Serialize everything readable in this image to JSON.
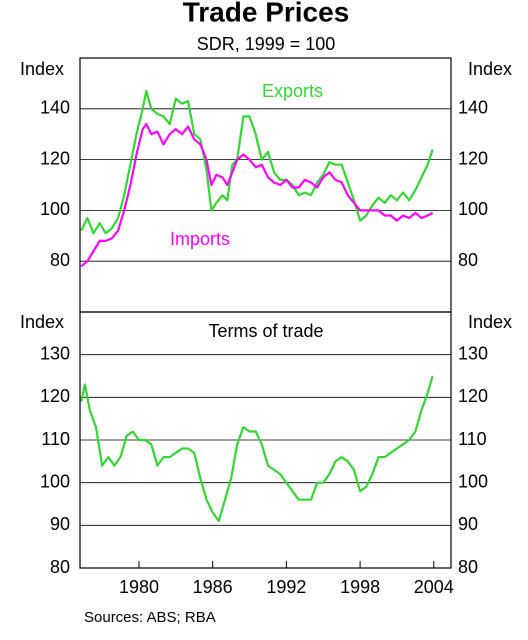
{
  "chart_data": [
    {
      "type": "line",
      "title": "Trade Prices",
      "subtitle": "SDR, 1999 = 100",
      "ylabel": "Index",
      "x": [
        1975.3,
        1975.8,
        1976.3,
        1976.8,
        1977.3,
        1977.8,
        1978.3,
        1978.8,
        1979.3,
        1979.8,
        1980.3,
        1980.6,
        1981,
        1981.5,
        1982,
        1982.5,
        1983,
        1983.5,
        1984,
        1984.5,
        1985,
        1985.5,
        1985.9,
        1986.3,
        1986.8,
        1987.2,
        1987.6,
        1988,
        1988.5,
        1989,
        1989.5,
        1990,
        1990.5,
        1991,
        1991.5,
        1992,
        1992.5,
        1993,
        1993.5,
        1994,
        1994.5,
        1995,
        1995.5,
        1996,
        1996.5,
        1997,
        1997.5,
        1998,
        1998.5,
        1999,
        1999.5,
        2000,
        2000.5,
        2001,
        2001.5,
        2002,
        2002.5,
        2003,
        2003.5,
        2003.9
      ],
      "series": [
        {
          "name": "Exports",
          "color": "#33d633",
          "values": [
            92,
            97,
            91,
            95,
            91,
            93,
            97,
            106,
            118,
            130,
            140,
            147,
            140,
            138,
            137,
            134,
            144,
            142,
            143,
            130,
            128,
            116,
            100,
            103,
            106,
            104,
            118,
            120,
            137,
            137,
            130,
            120,
            123,
            115,
            112,
            112,
            110,
            106,
            107,
            106,
            111,
            114,
            119,
            118,
            118,
            111,
            104,
            96,
            98,
            102,
            105,
            103,
            106,
            104,
            107,
            104,
            108,
            113,
            118,
            124
          ]
        },
        {
          "name": "Imports",
          "color": "#ff00ff",
          "values": [
            78,
            80,
            84,
            88,
            88,
            89,
            92,
            100,
            110,
            122,
            132,
            134,
            130,
            131,
            126,
            130,
            132,
            130,
            133,
            128,
            126,
            120,
            110,
            114,
            113,
            110,
            115,
            120,
            122,
            120,
            117,
            118,
            113,
            111,
            110,
            112,
            109,
            109,
            112,
            111,
            109,
            113,
            115,
            112,
            111,
            106,
            103,
            100,
            100,
            100,
            100,
            98,
            98,
            96,
            98,
            97,
            99,
            97,
            98,
            99
          ]
        }
      ],
      "xlim": [
        1975.2,
        2005.4
      ],
      "ylim": [
        60,
        160
      ],
      "yticks": [
        80,
        100,
        120,
        140
      ],
      "grid": true
    },
    {
      "type": "line",
      "title": "Terms of trade",
      "ylabel": "Index",
      "source": "Sources: ABS; RBA",
      "x": [
        1975.3,
        1975.6,
        1976,
        1976.5,
        1977,
        1977.5,
        1978,
        1978.5,
        1979,
        1979.5,
        1980,
        1980.5,
        1981,
        1981.5,
        1982,
        1982.5,
        1983,
        1983.5,
        1984,
        1984.5,
        1985,
        1985.5,
        1986,
        1986.5,
        1987,
        1987.5,
        1988,
        1988.5,
        1989,
        1989.5,
        1990,
        1990.5,
        1991,
        1991.5,
        1992,
        1992.5,
        1993,
        1993.5,
        1994,
        1994.5,
        1995,
        1995.5,
        1996,
        1996.5,
        1997,
        1997.5,
        1998,
        1998.5,
        1999,
        1999.5,
        2000,
        2000.5,
        2001,
        2001.5,
        2002,
        2002.5,
        2003,
        2003.5,
        2003.9
      ],
      "series": [
        {
          "name": "Terms of trade",
          "color": "#33d633",
          "values": [
            119,
            123,
            117,
            113,
            104,
            106,
            104,
            106,
            111,
            112,
            110,
            110,
            109,
            104,
            106,
            106,
            107,
            108,
            108,
            107,
            101,
            96,
            93,
            91,
            96,
            101,
            109,
            113,
            112,
            112,
            109,
            104,
            103,
            102,
            100,
            98,
            96,
            96,
            96,
            100,
            100,
            102,
            105,
            106,
            105,
            103,
            98,
            99,
            102,
            106,
            106,
            107,
            108,
            109,
            110,
            112,
            117,
            121,
            125
          ]
        }
      ],
      "xlim": [
        1975.2,
        2005.4
      ],
      "xticks": [
        1980,
        1986,
        1992,
        1998,
        2004
      ],
      "ylim": [
        80,
        140
      ],
      "yticks": [
        80,
        90,
        100,
        110,
        120,
        130
      ],
      "grid": true
    }
  ]
}
